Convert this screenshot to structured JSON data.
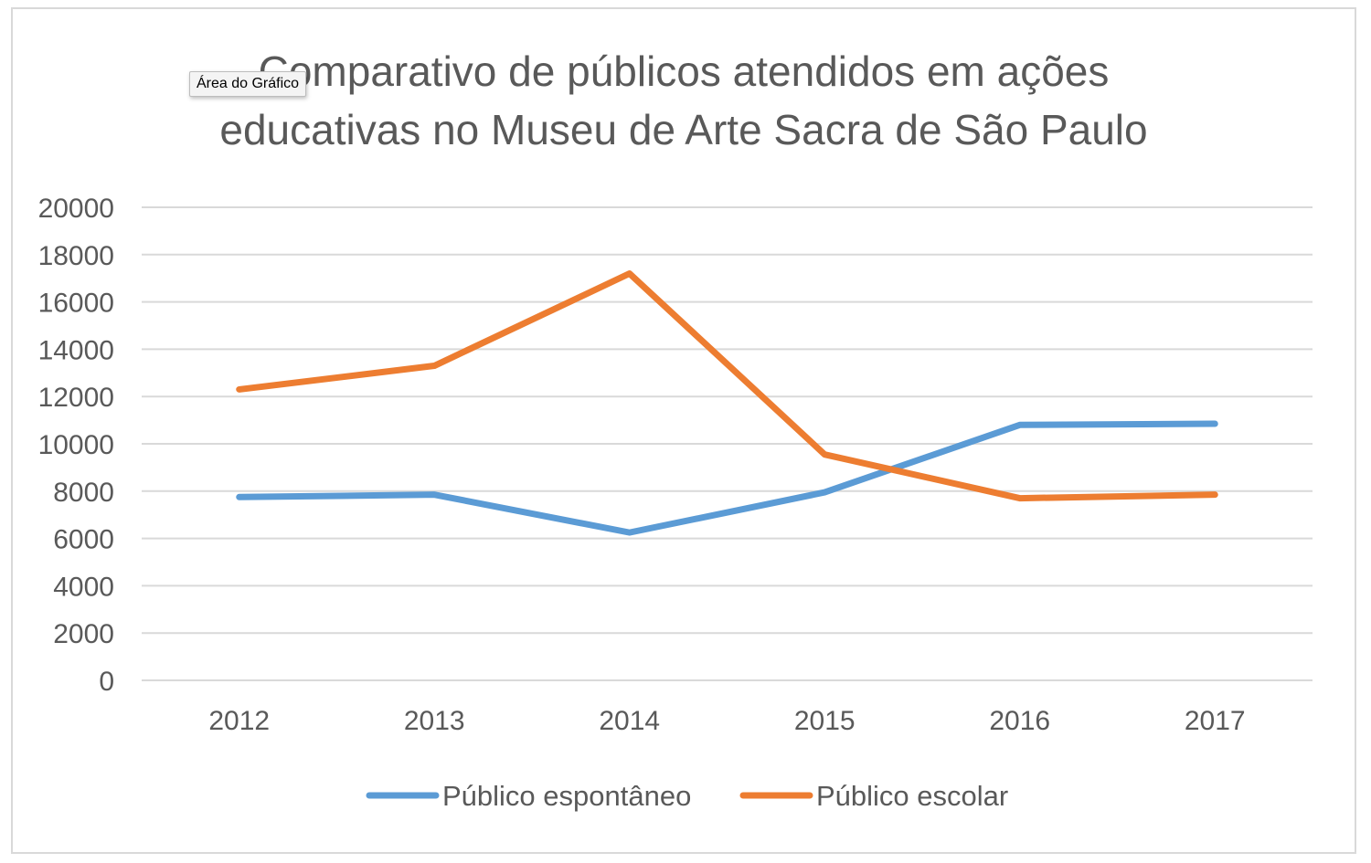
{
  "tooltip": {
    "label": "Área do Gráfico"
  },
  "chart_data": {
    "type": "line",
    "title": "Comparativo de públicos atendidos em ações educativas no Museu de Arte Sacra de São Paulo",
    "title_lines": [
      "Comparativo de públicos atendidos em ações",
      "educativas no Museu de Arte Sacra de São Paulo"
    ],
    "xlabel": "",
    "ylabel": "",
    "categories": [
      "2012",
      "2013",
      "2014",
      "2015",
      "2016",
      "2017"
    ],
    "ylim": [
      0,
      20000
    ],
    "yticks": [
      0,
      2000,
      4000,
      6000,
      8000,
      10000,
      12000,
      14000,
      16000,
      18000,
      20000
    ],
    "grid": true,
    "legend_position": "bottom",
    "series": [
      {
        "name": "Público espontâneo",
        "color": "#5b9bd5",
        "values": [
          7750,
          7850,
          6250,
          7950,
          10800,
          10850
        ]
      },
      {
        "name": "Público escolar",
        "color": "#ed7d31",
        "values": [
          12300,
          13300,
          17200,
          9550,
          7700,
          7850
        ]
      }
    ]
  }
}
